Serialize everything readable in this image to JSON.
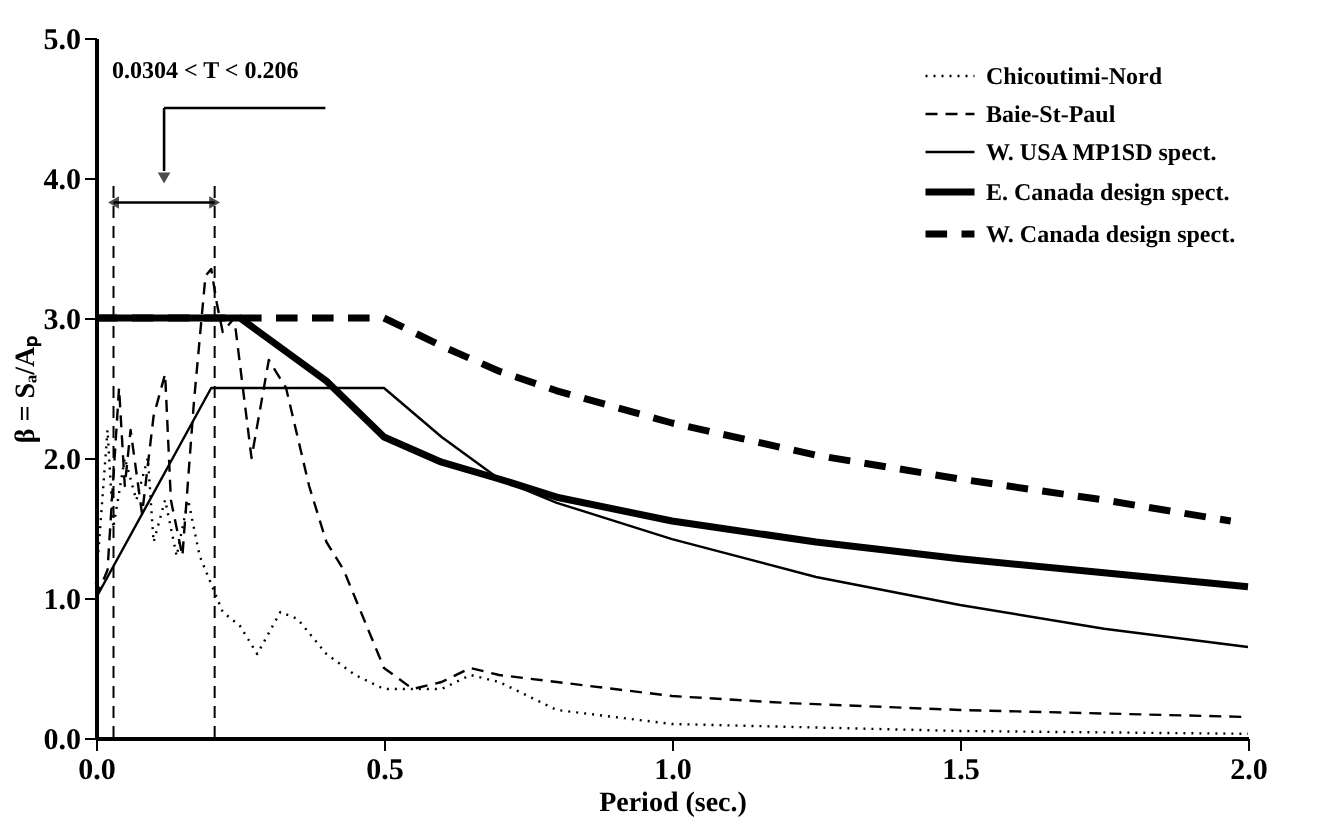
{
  "chart_data": {
    "type": "line",
    "xlabel": "Period (sec.)",
    "ylabel": "β = Sₐ/Aₚ",
    "xlim": [
      0,
      2
    ],
    "ylim": [
      0,
      5
    ],
    "xticks": [
      {
        "value": 0,
        "label": "0.0"
      },
      {
        "value": 0.5,
        "label": "0.5"
      },
      {
        "value": 1,
        "label": "1.0"
      },
      {
        "value": 1.5,
        "label": "1.5"
      },
      {
        "value": 2,
        "label": "2.0"
      }
    ],
    "yticks": [
      {
        "value": 0,
        "label": "0.0"
      },
      {
        "value": 1,
        "label": "1.0"
      },
      {
        "value": 2,
        "label": "2.0"
      },
      {
        "value": 3,
        "label": "3.0"
      },
      {
        "value": 4,
        "label": "4.0"
      },
      {
        "value": 5,
        "label": "5.0"
      }
    ],
    "grid": false,
    "legend": "top right",
    "marker": "none",
    "series": [
      {
        "name": "Chicoutimi-Nord",
        "color": "#000000",
        "line_style": "dotted",
        "x": [
          0,
          0.02,
          0.03,
          0.05,
          0.07,
          0.09,
          0.1,
          0.12,
          0.14,
          0.16,
          0.18,
          0.2,
          0.22,
          0.25,
          0.28,
          0.32,
          0.35,
          0.4,
          0.45,
          0.5,
          0.6,
          0.65,
          0.7,
          0.8,
          1.0,
          1.5,
          2.0
        ],
        "values": [
          1.1,
          2.2,
          1.5,
          2.0,
          1.7,
          2.0,
          1.4,
          1.7,
          1.3,
          1.7,
          1.3,
          1.1,
          0.9,
          0.8,
          0.6,
          0.9,
          0.85,
          0.6,
          0.45,
          0.35,
          0.35,
          0.45,
          0.4,
          0.2,
          0.1,
          0.05,
          0.03
        ]
      },
      {
        "name": "Baie-St-Paul",
        "color": "#000000",
        "line_style": "dashed",
        "x": [
          0,
          0.02,
          0.04,
          0.05,
          0.06,
          0.08,
          0.1,
          0.12,
          0.13,
          0.15,
          0.17,
          0.19,
          0.2,
          0.21,
          0.22,
          0.24,
          0.27,
          0.3,
          0.33,
          0.37,
          0.4,
          0.43,
          0.45,
          0.5,
          0.55,
          0.6,
          0.65,
          0.7,
          0.8,
          0.9,
          1.0,
          1.2,
          1.5,
          2.0
        ],
        "values": [
          1.0,
          1.2,
          2.5,
          1.8,
          2.2,
          1.6,
          2.3,
          2.6,
          1.7,
          1.3,
          2.4,
          3.3,
          3.35,
          3.1,
          2.9,
          3.0,
          2.0,
          2.7,
          2.5,
          1.8,
          1.4,
          1.2,
          1.0,
          0.5,
          0.35,
          0.4,
          0.5,
          0.45,
          0.4,
          0.35,
          0.3,
          0.25,
          0.2,
          0.15
        ]
      },
      {
        "name": "W. USA MP1SD spect.",
        "color": "#000000",
        "line_style": "solid",
        "x": [
          0,
          0.2,
          0.5,
          0.6,
          0.7,
          0.8,
          1.0,
          1.25,
          1.5,
          1.75,
          2.0
        ],
        "values": [
          1.0,
          2.5,
          2.5,
          2.15,
          1.85,
          1.68,
          1.42,
          1.15,
          0.95,
          0.78,
          0.65
        ]
      },
      {
        "name": "E. Canada design spect.",
        "color": "#000000",
        "line_style": "solid",
        "x": [
          0,
          0.25,
          0.4,
          0.5,
          0.6,
          0.7,
          0.8,
          1.0,
          1.25,
          1.5,
          1.75,
          2.0
        ],
        "values": [
          3.0,
          3.0,
          2.55,
          2.15,
          1.97,
          1.85,
          1.72,
          1.55,
          1.4,
          1.28,
          1.18,
          1.08
        ]
      },
      {
        "name": "W. Canada design spect.",
        "color": "#000000",
        "line_style": "dashed",
        "x": [
          0,
          0.5,
          0.6,
          0.7,
          0.8,
          1.0,
          1.25,
          1.5,
          1.75,
          1.97
        ],
        "values": [
          3.0,
          3.0,
          2.8,
          2.62,
          2.48,
          2.25,
          2.02,
          1.85,
          1.7,
          1.55
        ]
      }
    ],
    "ref_lines": [
      {
        "axis": "x",
        "value": 0.0304,
        "line_style": "dashed"
      },
      {
        "axis": "x",
        "value": 0.206,
        "line_style": "dashed"
      }
    ],
    "annotations": [
      "0.0304 < T < 0.206"
    ]
  }
}
